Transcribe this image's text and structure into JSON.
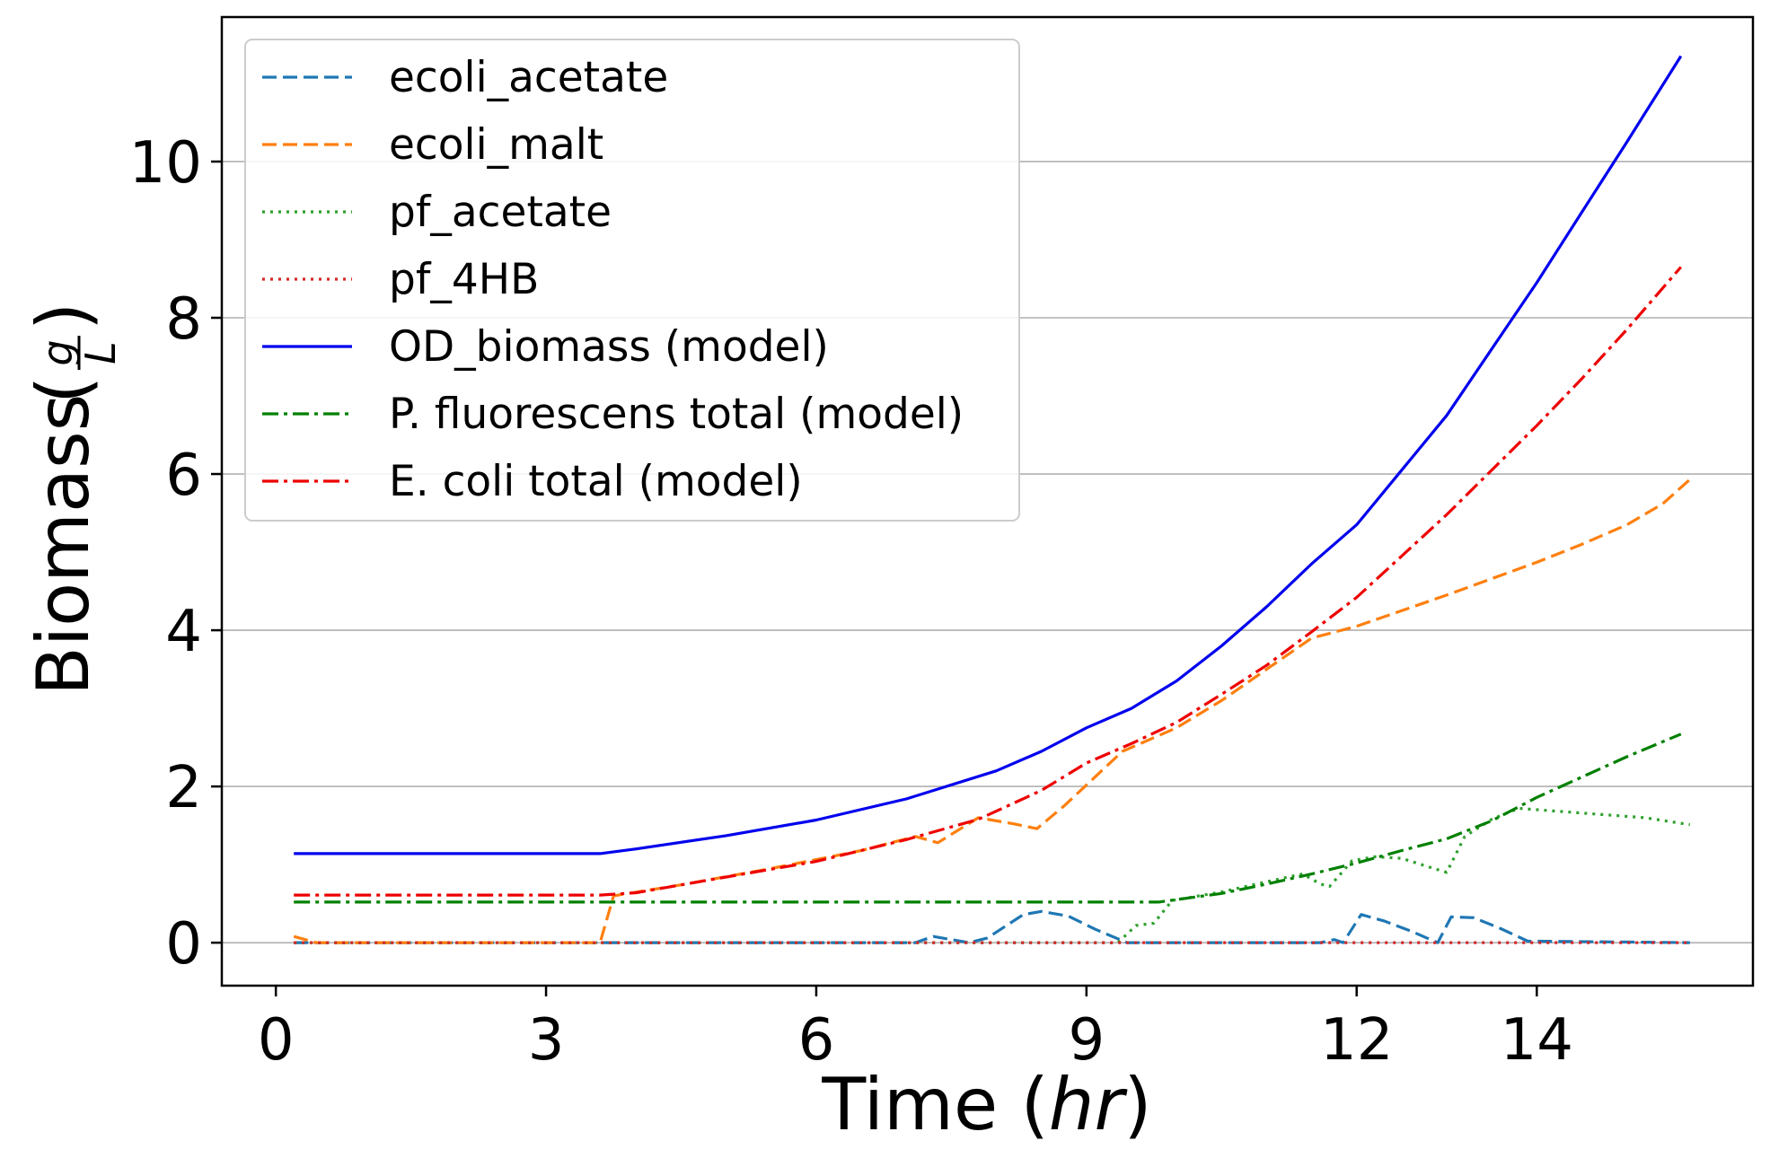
{
  "chart_data": {
    "type": "line",
    "xlabel": {
      "base": "Time",
      "italic": "hr"
    },
    "ylabel": {
      "base": "Biomass",
      "numerator": "g",
      "denominator": "L"
    },
    "xlim": [
      -0.6,
      16.4
    ],
    "ylim": [
      -0.55,
      11.85
    ],
    "xticks": [
      0,
      3,
      6,
      9,
      12,
      14
    ],
    "yticks": [
      0,
      2,
      4,
      6,
      8,
      10
    ],
    "grid": "horizontal",
    "legend_position": "upper-left",
    "series": [
      {
        "name": "ecoli_acetate",
        "color": "#1f77b4",
        "style": "dashed",
        "points": [
          [
            0.2,
            0
          ],
          [
            7.1,
            0
          ],
          [
            7.3,
            0.08
          ],
          [
            7.5,
            0.04
          ],
          [
            7.7,
            0
          ],
          [
            7.9,
            0.06
          ],
          [
            8.3,
            0.36
          ],
          [
            8.5,
            0.4
          ],
          [
            8.8,
            0.34
          ],
          [
            9.1,
            0.17
          ],
          [
            9.45,
            0
          ],
          [
            11.6,
            0
          ],
          [
            11.75,
            0.04
          ],
          [
            11.85,
            0
          ],
          [
            12.05,
            0.36
          ],
          [
            12.3,
            0.28
          ],
          [
            12.6,
            0.15
          ],
          [
            12.8,
            0.05
          ],
          [
            12.9,
            0
          ],
          [
            13.05,
            0.33
          ],
          [
            13.3,
            0.32
          ],
          [
            13.6,
            0.18
          ],
          [
            13.9,
            0.02
          ],
          [
            15.7,
            0
          ]
        ]
      },
      {
        "name": "ecoli_malt",
        "color": "#ff7f0e",
        "style": "dashed",
        "points": [
          [
            0.2,
            0.08
          ],
          [
            0.45,
            0
          ],
          [
            3.6,
            0
          ],
          [
            3.75,
            0.6
          ],
          [
            4.5,
            0.74
          ],
          [
            5.5,
            0.95
          ],
          [
            6.5,
            1.18
          ],
          [
            7.1,
            1.36
          ],
          [
            7.35,
            1.28
          ],
          [
            7.8,
            1.6
          ],
          [
            8.2,
            1.52
          ],
          [
            8.45,
            1.46
          ],
          [
            8.75,
            1.75
          ],
          [
            9.4,
            2.45
          ],
          [
            10,
            2.75
          ],
          [
            10.5,
            3.1
          ],
          [
            11,
            3.5
          ],
          [
            11.5,
            3.9
          ],
          [
            12,
            4.05
          ],
          [
            12.5,
            4.25
          ],
          [
            13,
            4.45
          ],
          [
            13.5,
            4.66
          ],
          [
            14,
            4.87
          ],
          [
            14.5,
            5.1
          ],
          [
            15,
            5.35
          ],
          [
            15.4,
            5.62
          ],
          [
            15.7,
            5.93
          ]
        ]
      },
      {
        "name": "pf_acetate",
        "color": "#2ca02c",
        "style": "dotted",
        "points": [
          [
            0.2,
            0
          ],
          [
            9.35,
            0
          ],
          [
            9.55,
            0.22
          ],
          [
            9.75,
            0.25
          ],
          [
            9.95,
            0.54
          ],
          [
            10.5,
            0.65
          ],
          [
            11,
            0.78
          ],
          [
            11.4,
            0.88
          ],
          [
            11.6,
            0.75
          ],
          [
            11.7,
            0.72
          ],
          [
            11.95,
            1.05
          ],
          [
            12.2,
            1.1
          ],
          [
            12.5,
            1.08
          ],
          [
            12.8,
            0.97
          ],
          [
            13,
            0.9
          ],
          [
            13.2,
            1.36
          ],
          [
            13.5,
            1.58
          ],
          [
            13.8,
            1.72
          ],
          [
            14.5,
            1.66
          ],
          [
            15.2,
            1.6
          ],
          [
            15.7,
            1.51
          ]
        ]
      },
      {
        "name": "pf_4HB",
        "color": "#d62728",
        "style": "dotted",
        "points": [
          [
            0.2,
            0
          ],
          [
            15.7,
            0
          ]
        ]
      },
      {
        "name": "OD_biomass (model)",
        "color": "#0000ee",
        "style": "solid",
        "points": [
          [
            0.2,
            1.14
          ],
          [
            3.6,
            1.14
          ],
          [
            4,
            1.2
          ],
          [
            5,
            1.37
          ],
          [
            6,
            1.57
          ],
          [
            7,
            1.84
          ],
          [
            8,
            2.2
          ],
          [
            8.5,
            2.45
          ],
          [
            9,
            2.75
          ],
          [
            9.5,
            3
          ],
          [
            10,
            3.35
          ],
          [
            10.5,
            3.8
          ],
          [
            11,
            4.3
          ],
          [
            11.5,
            4.85
          ],
          [
            12,
            5.35
          ],
          [
            12.5,
            6.05
          ],
          [
            13,
            6.75
          ],
          [
            13.5,
            7.6
          ],
          [
            14,
            8.45
          ],
          [
            14.5,
            9.35
          ],
          [
            15,
            10.25
          ],
          [
            15.6,
            11.35
          ]
        ]
      },
      {
        "name": "P. fluorescens total (model)",
        "color": "#008000",
        "style": "dashdot",
        "points": [
          [
            0.2,
            0.52
          ],
          [
            3.6,
            0.52
          ],
          [
            9.8,
            0.52
          ],
          [
            10.5,
            0.63
          ],
          [
            11,
            0.75
          ],
          [
            11.5,
            0.88
          ],
          [
            12,
            1.02
          ],
          [
            12.5,
            1.18
          ],
          [
            13,
            1.33
          ],
          [
            13.5,
            1.56
          ],
          [
            14,
            1.86
          ],
          [
            14.5,
            2.12
          ],
          [
            15,
            2.38
          ],
          [
            15.6,
            2.67
          ]
        ]
      },
      {
        "name": "E. coli total (model)",
        "color": "#ee0000",
        "style": "dashdot",
        "points": [
          [
            0.2,
            0.61
          ],
          [
            3.6,
            0.61
          ],
          [
            4,
            0.64
          ],
          [
            5,
            0.84
          ],
          [
            6,
            1.04
          ],
          [
            7,
            1.32
          ],
          [
            7.8,
            1.58
          ],
          [
            8.5,
            1.95
          ],
          [
            9,
            2.3
          ],
          [
            9.5,
            2.55
          ],
          [
            10,
            2.82
          ],
          [
            10.5,
            3.18
          ],
          [
            11,
            3.55
          ],
          [
            11.5,
            3.98
          ],
          [
            12,
            4.42
          ],
          [
            12.5,
            4.95
          ],
          [
            13,
            5.48
          ],
          [
            13.5,
            6.05
          ],
          [
            14,
            6.62
          ],
          [
            14.5,
            7.22
          ],
          [
            15,
            7.85
          ],
          [
            15.6,
            8.65
          ]
        ]
      }
    ]
  }
}
